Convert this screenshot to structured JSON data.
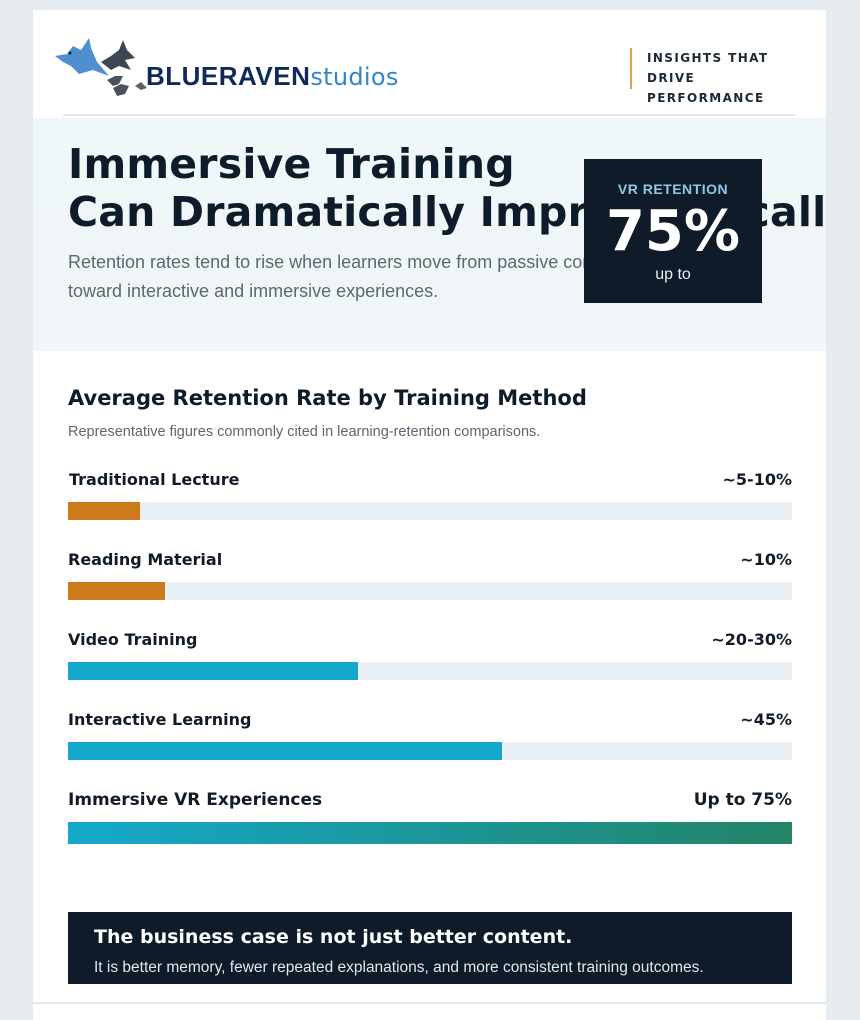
{
  "header": {
    "brand_bold": "BLUERAVEN",
    "brand_light": "studios",
    "tagline_line1": "INSIGHTS THAT DRIVE",
    "tagline_line2": "PERFORMANCE"
  },
  "hero": {
    "title_line1": "Immersive Training",
    "title_line2": "Can Dramatically Improve Recall",
    "subtitle": "Retention rates tend to rise when learners move from passive content toward interactive and immersive experiences."
  },
  "stat": {
    "label": "VR RETENTION",
    "value": "75%",
    "note": "up to"
  },
  "chart": {
    "title": "Average Retention Rate by Training Method",
    "subtitle": "Representative figures commonly cited in learning-retention comparisons."
  },
  "chart_data": {
    "type": "bar",
    "categories": [
      "Traditional Lecture",
      "Reading Material",
      "Video Training",
      "Interactive Learning",
      "Immersive VR Experiences"
    ],
    "value_labels": [
      "~5-10%",
      "~10%",
      "~20-30%",
      "~45%",
      "Up to 75%"
    ],
    "values": [
      7.5,
      10,
      30,
      45,
      75
    ],
    "xlim": [
      0,
      75
    ]
  },
  "colors": {
    "orange": "#cd7a1c",
    "teal": "#15a8cc",
    "gradient_start": "#15a8cc",
    "gradient_end": "#238466",
    "navy": "#0f1b29"
  },
  "callout": {
    "title": "The business case is not just better content.",
    "text": "It is better memory, fewer repeated explanations, and more consistent training outcomes."
  }
}
